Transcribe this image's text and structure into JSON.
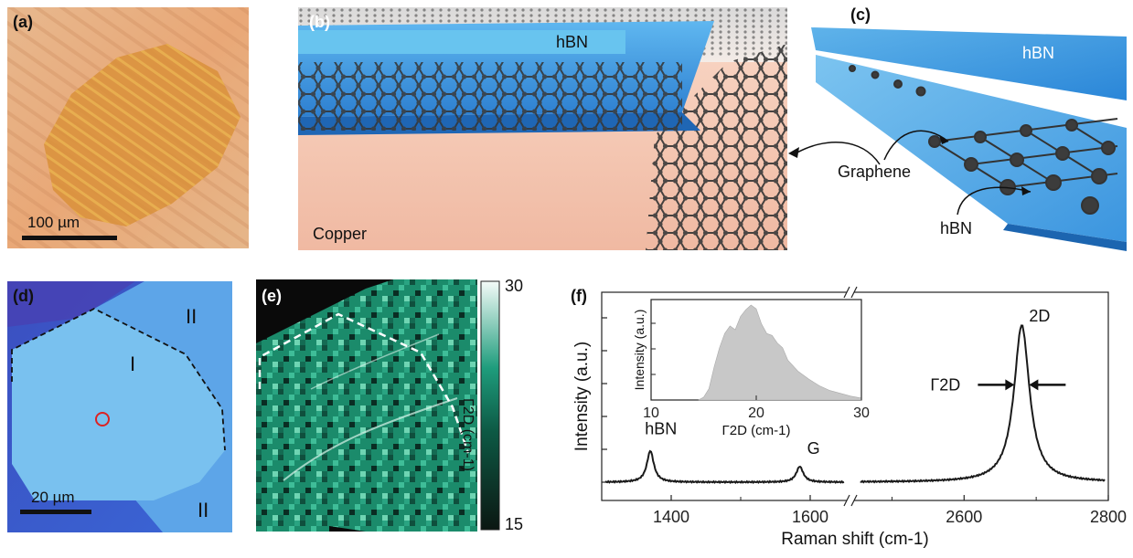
{
  "panels": {
    "a": {
      "label": "(a)",
      "scalebar": "100 µm"
    },
    "b": {
      "label": "(b)",
      "hbn": "hBN",
      "copper": "Copper"
    },
    "c": {
      "label": "(c)",
      "hbn_top": "hBN",
      "graphene": "Graphene",
      "hbn_bottom": "hBN"
    },
    "d": {
      "label": "(d)",
      "region_I": "I",
      "region_II_top": "II",
      "region_II_bottom": "II",
      "scalebar": "20 µm"
    },
    "e": {
      "label": "(e)",
      "colorbar_max": "30",
      "colorbar_min": "15",
      "colorbar_label": "Γ2D (cm-1)"
    },
    "f": {
      "label": "(f)"
    }
  },
  "colors": {
    "graphene": "#3a3a3a",
    "hbn_blue": "#3f9be0",
    "copper": "#f3c7b2",
    "map_green": "#1e9c7c",
    "inset_fill": "#c8c8c8"
  },
  "chart_data": [
    {
      "type": "line",
      "panel": "f",
      "xlabel": "Raman shift (cm-1)",
      "ylabel": "Intensity (a.u.)",
      "xticks": [
        "1400",
        "1600",
        "2600",
        "2800"
      ],
      "axis_break": true,
      "xlim_left": [
        1300,
        1650
      ],
      "xlim_right": [
        2450,
        2800
      ],
      "peaks": [
        {
          "name": "hBN",
          "x": 1370,
          "height": 0.2
        },
        {
          "name": "G",
          "x": 1585,
          "height": 0.1
        },
        {
          "name": "2D",
          "x": 2680,
          "height": 1.0
        }
      ],
      "annotations": [
        "hBN",
        "G",
        "2D",
        "Γ2D"
      ]
    },
    {
      "type": "area",
      "panel": "f-inset",
      "xlabel": "Γ2D (cm-1)",
      "ylabel": "Intensity (a.u.)",
      "xticks": [
        "10",
        "20",
        "30"
      ],
      "xlim": [
        10,
        30
      ],
      "x": [
        14.5,
        15.0,
        15.5,
        16.0,
        16.5,
        17.0,
        17.5,
        18.0,
        18.5,
        19.0,
        19.5,
        20.0,
        20.5,
        21.0,
        21.5,
        22.0,
        22.5,
        23.0,
        24.0,
        25.0,
        26.0,
        27.0,
        28.0,
        29.0,
        30.0
      ],
      "values": [
        0.0,
        0.03,
        0.12,
        0.35,
        0.55,
        0.7,
        0.78,
        0.74,
        0.88,
        0.95,
        1.0,
        0.96,
        0.8,
        0.7,
        0.68,
        0.6,
        0.55,
        0.42,
        0.3,
        0.22,
        0.15,
        0.1,
        0.07,
        0.04,
        0.02
      ]
    }
  ]
}
